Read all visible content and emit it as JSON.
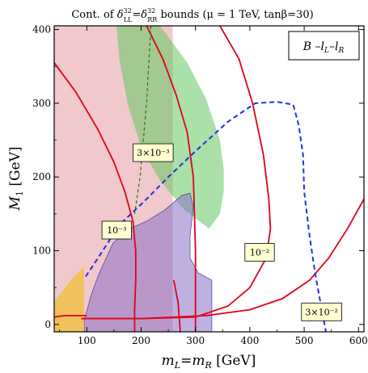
{
  "figure": {
    "title": "Cont. of δ³²LL=δ³²RR bounds (μ = 1 TeV, tanβ=30)",
    "title_parts": {
      "prefix": "Cont. of ",
      "delta": "δ",
      "sup1": "32",
      "sub1": "LL",
      "eq": "=",
      "sup2": "32",
      "sub2": "RR",
      "suffix": " bounds (μ = 1 TeV, tanβ=30)"
    },
    "legend_box": "B̃ –l̃L–l̃R",
    "legend_parts": {
      "b": "B",
      "dash1": " –",
      "l1": "l",
      "sub1": "L",
      "dash2": "–",
      "l2": "l",
      "sub2": "R"
    },
    "xlabel": "mL=mR [GeV]",
    "xlabel_parts": {
      "m1": "m",
      "s1": "L",
      "eq": "=",
      "m2": "m",
      "s2": "R",
      "unit": " [GeV]"
    },
    "ylabel": "M1 [GeV]",
    "ylabel_parts": {
      "m": "M",
      "s": "1",
      "unit": " [GeV]"
    }
  },
  "chart_data": {
    "type": "area",
    "xlim": [
      40,
      610
    ],
    "ylim": [
      -10,
      405
    ],
    "xticks": [
      100,
      200,
      300,
      400,
      500,
      600
    ],
    "yticks": [
      0,
      100,
      200,
      300,
      400
    ],
    "grid": false,
    "colors": {
      "pink_region": "#e8a4a8",
      "green_region": "#62c860",
      "olive_overlap": "#7a7c44",
      "purple_region": "#8a70c8",
      "orange_region": "#f0c040",
      "red_contours": "#e00018",
      "blue_dashed": "#2030e0",
      "green_dashed": "#1f7a1f",
      "label_box": "#ffffd0"
    },
    "series": [
      {
        "kind": "region",
        "color": "pink_region",
        "points": [
          [
            40,
            -10
          ],
          [
            258,
            -10
          ],
          [
            258,
            405
          ],
          [
            40,
            405
          ]
        ]
      },
      {
        "kind": "region",
        "color": "green_region",
        "points": [
          [
            155,
            405
          ],
          [
            235,
            405
          ],
          [
            285,
            355
          ],
          [
            320,
            305
          ],
          [
            345,
            250
          ],
          [
            352,
            210
          ],
          [
            352,
            180
          ],
          [
            345,
            150
          ],
          [
            325,
            130
          ],
          [
            280,
            155
          ],
          [
            235,
            195
          ],
          [
            200,
            240
          ],
          [
            175,
            300
          ],
          [
            160,
            360
          ]
        ]
      },
      {
        "kind": "region",
        "color": "purple_region",
        "points": [
          [
            95,
            5
          ],
          [
            108,
            40
          ],
          [
            122,
            68
          ],
          [
            148,
            110
          ],
          [
            180,
            130
          ],
          [
            210,
            140
          ],
          [
            243,
            155
          ],
          [
            275,
            175
          ],
          [
            290,
            178
          ],
          [
            296,
            160
          ],
          [
            290,
            120
          ],
          [
            290,
            90
          ],
          [
            305,
            70
          ],
          [
            330,
            60
          ],
          [
            330,
            -10
          ],
          [
            95,
            -10
          ]
        ]
      },
      {
        "kind": "region",
        "color": "orange_region",
        "points": [
          [
            40,
            -10
          ],
          [
            40,
            30
          ],
          [
            70,
            60
          ],
          [
            95,
            78
          ],
          [
            95,
            -10
          ]
        ]
      },
      {
        "kind": "contour",
        "label": "10⁻³",
        "label_at": [
          155,
          128
        ],
        "color": "red_contours",
        "points": [
          [
            40,
            355
          ],
          [
            80,
            315
          ],
          [
            120,
            265
          ],
          [
            150,
            220
          ],
          [
            170,
            180
          ],
          [
            185,
            140
          ],
          [
            190,
            100
          ],
          [
            190,
            60
          ],
          [
            188,
            20
          ],
          [
            188,
            -10
          ]
        ]
      },
      {
        "kind": "contour",
        "label": "3×10⁻³",
        "label_at": [
          222,
          233
        ],
        "color": "red_contours",
        "points": [
          [
            210,
            405
          ],
          [
            240,
            360
          ],
          [
            265,
            310
          ],
          [
            285,
            260
          ],
          [
            296,
            200
          ],
          [
            298,
            150
          ],
          [
            300,
            100
          ],
          [
            300,
            50
          ],
          [
            300,
            -10
          ]
        ]
      },
      {
        "kind": "contour",
        "label": "10⁻²",
        "label_at": [
          418,
          98
        ],
        "color": "red_contours",
        "points": [
          [
            345,
            405
          ],
          [
            380,
            360
          ],
          [
            405,
            300
          ],
          [
            425,
            230
          ],
          [
            435,
            170
          ],
          [
            438,
            130
          ],
          [
            430,
            90
          ],
          [
            400,
            50
          ],
          [
            360,
            25
          ],
          [
            300,
            10
          ],
          [
            200,
            8
          ],
          [
            90,
            8
          ]
        ]
      },
      {
        "kind": "contour",
        "label": "3×10⁻²",
        "label_at": [
          532,
          17
        ],
        "color": "red_contours",
        "points": [
          [
            610,
            170
          ],
          [
            580,
            130
          ],
          [
            545,
            90
          ],
          [
            510,
            60
          ],
          [
            460,
            35
          ],
          [
            400,
            20
          ],
          [
            320,
            12
          ],
          [
            200,
            8
          ],
          [
            90,
            8
          ]
        ]
      },
      {
        "kind": "contour",
        "color": "red_contours",
        "points": [
          [
            260,
            60
          ],
          [
            268,
            30
          ],
          [
            272,
            -10
          ]
        ]
      },
      {
        "kind": "contour",
        "color": "red_contours",
        "points": [
          [
            100,
            12
          ],
          [
            60,
            12
          ],
          [
            40,
            10
          ]
        ]
      },
      {
        "kind": "dashed",
        "color": "blue_dashed",
        "points": [
          [
            98,
            65
          ],
          [
            125,
            95
          ],
          [
            160,
            135
          ],
          [
            210,
            170
          ],
          [
            250,
            200
          ],
          [
            300,
            235
          ],
          [
            360,
            275
          ],
          [
            410,
            300
          ],
          [
            450,
            302
          ],
          [
            480,
            298
          ],
          [
            490,
            270
          ],
          [
            498,
            230
          ],
          [
            500,
            180
          ],
          [
            510,
            120
          ],
          [
            520,
            70
          ],
          [
            530,
            30
          ],
          [
            540,
            -10
          ]
        ]
      },
      {
        "kind": "dashed",
        "color": "green_dashed",
        "points": [
          [
            218,
            405
          ],
          [
            210,
            300
          ],
          [
            198,
            200
          ],
          [
            188,
            150
          ]
        ]
      }
    ],
    "annotations": [
      "10⁻³",
      "3×10⁻³",
      "10⁻²",
      "3×10⁻²"
    ]
  }
}
